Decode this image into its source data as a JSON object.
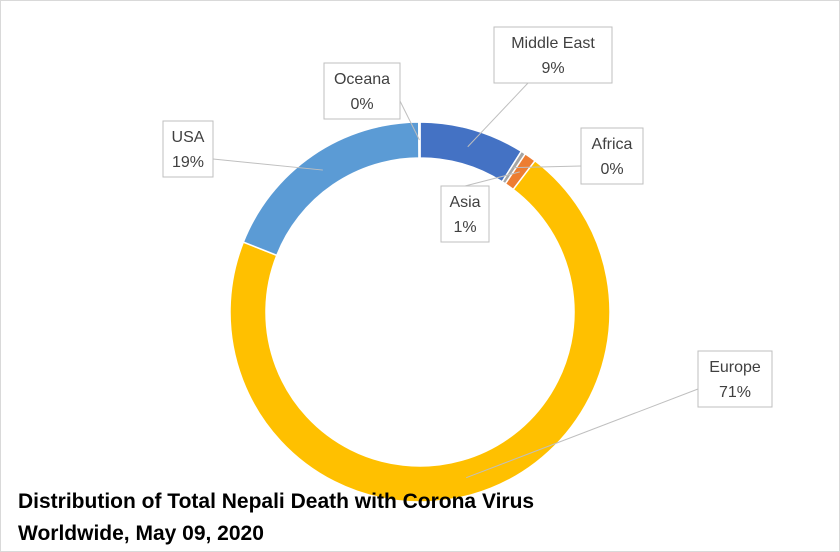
{
  "chart_data": {
    "type": "pie",
    "style": "donut",
    "title_lines": [
      "Distribution of Total Nepali Death with Corona Virus",
      "Worldwide, May 09, 2020"
    ],
    "slices": [
      {
        "label": "Middle East",
        "value_label": "9%",
        "value": 9,
        "color": "#4472c4"
      },
      {
        "label": "Africa",
        "value_label": "0%",
        "value": 0.4,
        "color": "#a5a5a5"
      },
      {
        "label": "Asia",
        "value_label": "1%",
        "value": 1,
        "color": "#ed7d31"
      },
      {
        "label": "Europe",
        "value_label": "71%",
        "value": 71,
        "color": "#ffc000"
      },
      {
        "label": "USA",
        "value_label": "19%",
        "value": 19,
        "color": "#5b9bd5"
      },
      {
        "label": "Oceana",
        "value_label": "0%",
        "value": 0.1,
        "color": "#70ad47"
      }
    ],
    "legend": "none",
    "data_labels": "callouts with leader lines"
  }
}
